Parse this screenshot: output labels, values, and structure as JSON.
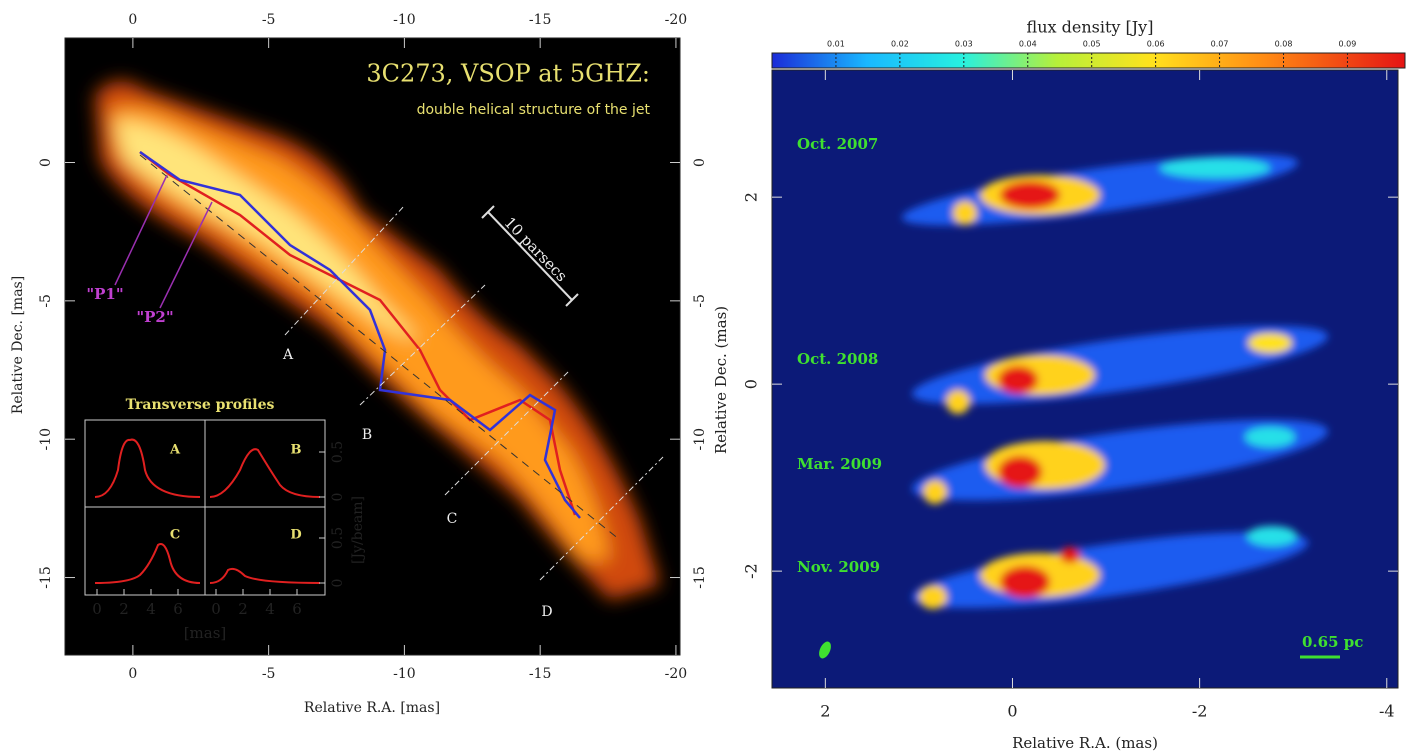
{
  "left_panel": {
    "title": "3C273,   VSOP at 5GHZ:",
    "subtitle": "double helical structure of the jet",
    "x_label": "Relative R.A. [mas]",
    "y_label": "Relative Dec. [mas]",
    "xlim": [
      2.5,
      -20.15
    ],
    "ylim": [
      -17.8,
      4.5
    ],
    "xticks": [
      0,
      -5,
      -10,
      -15,
      -20
    ],
    "yticks": [
      0,
      -5,
      -10,
      -15
    ],
    "scale_bar": "10 parsecs",
    "annotations": [
      "\"P1\"",
      "\"P2\""
    ],
    "cut_labels": [
      "A",
      "B",
      "C",
      "D"
    ],
    "inset": {
      "title": "Transverse profiles",
      "panels": [
        "A",
        "B",
        "C",
        "D"
      ],
      "x_label": "[mas]",
      "y_label": "[Jy/beam]",
      "xticks": [
        0,
        2,
        4,
        6
      ],
      "yticks": [
        0,
        0.5
      ]
    }
  },
  "right_panel": {
    "colorbar_label": "flux density [Jy]",
    "colorbar_lim": [
      0,
      0.099
    ],
    "colorbar_ticks": [
      0.01,
      0.02,
      0.03,
      0.04,
      0.05,
      0.06,
      0.07,
      0.08,
      0.09
    ],
    "x_label": "Relative R.A. (mas)",
    "y_label": "Relative Dec. (mas)",
    "xlim": [
      2.57,
      -4.12
    ],
    "ylim": [
      -3.25,
      3.36
    ],
    "xticks": [
      2,
      0,
      -2,
      -4
    ],
    "yticks": [
      2,
      0,
      -2
    ],
    "epochs": [
      "Oct. 2007",
      "Oct. 2008",
      "Mar. 2009",
      "Nov. 2009"
    ],
    "scale_bar": "0.65 pc"
  }
}
